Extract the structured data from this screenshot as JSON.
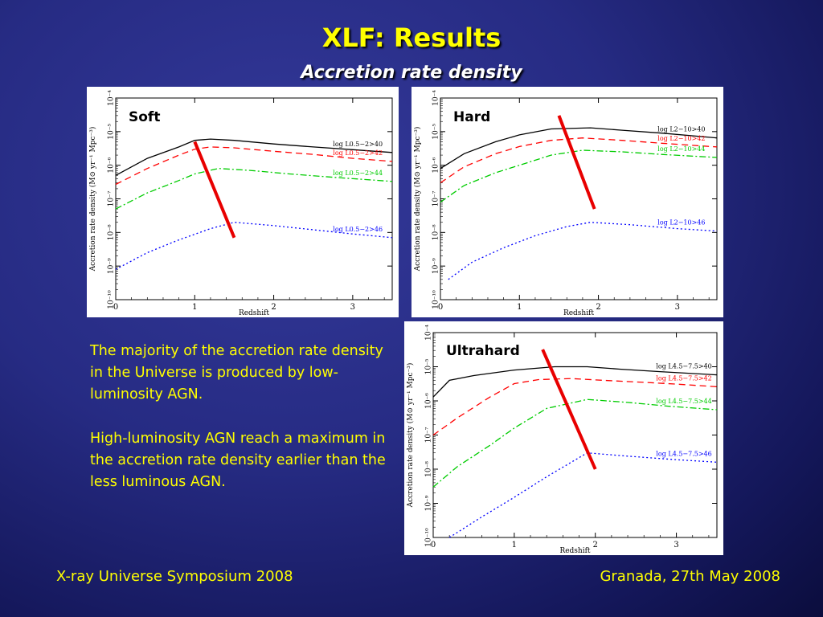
{
  "slide": {
    "title": "XLF: Results",
    "subtitle": "Accretion rate density",
    "paragraph1": "The majority of the accretion rate density in the Universe is produced by low-luminosity AGN.",
    "paragraph2": "High-luminosity AGN reach a maximum in the accretion rate density earlier than the less luminous AGN.",
    "footer_left": "X-ray Universe Symposium 2008",
    "footer_right": "Granada, 27th May 2008",
    "text_color": "#ffff00",
    "title_color": "#ffff00"
  },
  "chart_data": [
    {
      "type": "line",
      "panel_label": "Soft",
      "xlabel": "Redshift",
      "ylabel": "Accretion rate density (M⊙ yr⁻¹ Mpc⁻³)",
      "xlim": [
        0,
        3.5
      ],
      "ylim": [
        1e-10,
        0.0001
      ],
      "yscale": "log",
      "xticks": [
        "0",
        "1",
        "2",
        "3"
      ],
      "yticks": [
        "10⁻¹⁰",
        "10⁻⁹",
        "10⁻⁸",
        "10⁻⁷",
        "10⁻⁶",
        "10⁻⁵",
        "10⁻⁴"
      ],
      "series": [
        {
          "name": "log L0.5−2>40",
          "color": "#000000",
          "dash": "",
          "x": [
            0,
            0.4,
            0.8,
            1.0,
            1.2,
            1.5,
            2.0,
            2.5,
            3.0,
            3.5
          ],
          "y": [
            5e-07,
            1.6e-06,
            3.5e-06,
            5.5e-06,
            6e-06,
            5.5e-06,
            4.3e-06,
            3.5e-06,
            2.9e-06,
            2.4e-06
          ]
        },
        {
          "name": "log L0.5−2>42",
          "color": "#ff0000",
          "dash": "8,5",
          "x": [
            0,
            0.4,
            0.8,
            1.0,
            1.2,
            1.5,
            2.0,
            2.5,
            3.0,
            3.5
          ],
          "y": [
            2.7e-07,
            8e-07,
            2e-06,
            3e-06,
            3.5e-06,
            3.3e-06,
            2.6e-06,
            2.1e-06,
            1.6e-06,
            1.3e-06
          ]
        },
        {
          "name": "log L0.5−2>44",
          "color": "#00cc00",
          "dash": "8,3,2,3",
          "x": [
            0,
            0.4,
            0.8,
            1.0,
            1.3,
            1.7,
            2.2,
            2.8,
            3.5
          ],
          "y": [
            5e-08,
            1.5e-07,
            3.5e-07,
            5.5e-07,
            8e-07,
            7e-07,
            5.5e-07,
            4.3e-07,
            3.3e-07
          ]
        },
        {
          "name": "log L0.5−2>46",
          "color": "#0000ff",
          "dash": "2,3",
          "x": [
            0,
            0.4,
            0.8,
            1.2,
            1.5,
            2.0,
            2.5,
            3.0,
            3.5
          ],
          "y": [
            8e-10,
            2.5e-09,
            6e-09,
            1.3e-08,
            2e-08,
            1.6e-08,
            1.2e-08,
            9e-09,
            7e-09
          ]
        }
      ],
      "annotation_line": {
        "color": "#e80000",
        "from": {
          "x": 1.0,
          "y": 5e-06
        },
        "to": {
          "x": 1.5,
          "y": 7e-09
        }
      }
    },
    {
      "type": "line",
      "panel_label": "Hard",
      "xlabel": "Redshift",
      "ylabel": "Accretion rate density (M⊙ yr⁻¹ Mpc⁻³)",
      "xlim": [
        0,
        3.5
      ],
      "ylim": [
        1e-10,
        0.0001
      ],
      "yscale": "log",
      "xticks": [
        "0",
        "1",
        "2",
        "3"
      ],
      "yticks": [
        "10⁻¹⁰",
        "10⁻⁹",
        "10⁻⁸",
        "10⁻⁷",
        "10⁻⁶",
        "10⁻⁵",
        "10⁻⁴"
      ],
      "series": [
        {
          "name": "log L2−10>40",
          "color": "#000000",
          "dash": "",
          "x": [
            0,
            0.3,
            0.7,
            1.0,
            1.4,
            1.9,
            2.3,
            2.8,
            3.5
          ],
          "y": [
            8e-07,
            2.2e-06,
            5e-06,
            8e-06,
            1.2e-05,
            1.3e-05,
            1.1e-05,
            9e-06,
            6.5e-06
          ]
        },
        {
          "name": "log L2−10>42",
          "color": "#ff0000",
          "dash": "8,5",
          "x": [
            0,
            0.3,
            0.7,
            1.0,
            1.4,
            1.8,
            2.3,
            2.8,
            3.5
          ],
          "y": [
            3e-07,
            9e-07,
            2.2e-06,
            3.6e-06,
            5.5e-06,
            6.5e-06,
            5.5e-06,
            4.5e-06,
            3.5e-06
          ]
        },
        {
          "name": "log L2−10>44",
          "color": "#00cc00",
          "dash": "8,3,2,3",
          "x": [
            0,
            0.3,
            0.7,
            1.0,
            1.4,
            1.8,
            2.3,
            2.8,
            3.5
          ],
          "y": [
            8e-08,
            2.5e-07,
            6e-07,
            1e-06,
            2e-06,
            2.8e-06,
            2.5e-06,
            2.1e-06,
            1.7e-06
          ]
        },
        {
          "name": "log L2−10>46",
          "color": "#0000ff",
          "dash": "2,3",
          "x": [
            0.1,
            0.4,
            0.8,
            1.2,
            1.6,
            1.9,
            2.4,
            3.0,
            3.5
          ],
          "y": [
            4e-10,
            1.3e-09,
            3.5e-09,
            8e-09,
            1.5e-08,
            2e-08,
            1.7e-08,
            1.3e-08,
            1.1e-08
          ]
        }
      ],
      "annotation_line": {
        "color": "#e80000",
        "from": {
          "x": 1.5,
          "y": 3e-05
        },
        "to": {
          "x": 1.95,
          "y": 5e-08
        }
      }
    },
    {
      "type": "line",
      "panel_label": "Ultrahard",
      "xlabel": "Redshift",
      "ylabel": "Accretion rate density (M⊙ yr⁻¹ Mpc⁻³)",
      "xlim": [
        0,
        3.5
      ],
      "ylim": [
        1e-10,
        0.0001
      ],
      "yscale": "log",
      "xticks": [
        "0",
        "1",
        "2",
        "3"
      ],
      "yticks": [
        "10⁻¹⁰",
        "10⁻⁹",
        "10⁻⁸",
        "10⁻⁷",
        "10⁻⁶",
        "10⁻⁵",
        "10⁻⁴"
      ],
      "series": [
        {
          "name": "log L4.5−7.5>40",
          "color": "#000000",
          "dash": "",
          "x": [
            0,
            0.2,
            0.5,
            1.0,
            1.5,
            1.9,
            2.3,
            2.8,
            3.5
          ],
          "y": [
            1.3e-06,
            4e-06,
            5.5e-06,
            8e-06,
            1e-05,
            1e-05,
            8.5e-06,
            7.2e-06,
            5.8e-06
          ]
        },
        {
          "name": "log L4.5−7.5>42",
          "color": "#ff0000",
          "dash": "8,5",
          "x": [
            0,
            0.3,
            0.7,
            1.0,
            1.3,
            1.7,
            2.1,
            2.6,
            3.0,
            3.5
          ],
          "y": [
            1e-07,
            3.2e-07,
            1.3e-06,
            3.2e-06,
            4.2e-06,
            4.5e-06,
            4e-06,
            3.5e-06,
            3.1e-06,
            2.6e-06
          ]
        },
        {
          "name": "log L4.5−7.5>44",
          "color": "#00cc00",
          "dash": "8,3,2,3",
          "x": [
            0,
            0.3,
            0.7,
            1.0,
            1.4,
            1.9,
            2.4,
            2.9,
            3.5
          ],
          "y": [
            3e-09,
            1.2e-08,
            5e-08,
            1.6e-07,
            6e-07,
            1.1e-06,
            9e-07,
            7e-07,
            5.5e-07
          ]
        },
        {
          "name": "log L4.5−7.5>46",
          "color": "#0000ff",
          "dash": "2,3",
          "x": [
            0.2,
            0.6,
            1.0,
            1.4,
            1.9,
            2.4,
            3.0,
            3.5
          ],
          "y": [
            1e-10,
            4e-10,
            1.5e-09,
            6e-09,
            3e-08,
            2.4e-08,
            1.9e-08,
            1.6e-08
          ]
        }
      ],
      "annotation_line": {
        "color": "#e80000",
        "from": {
          "x": 1.35,
          "y": 3.2e-05
        },
        "to": {
          "x": 2.0,
          "y": 1e-08
        }
      }
    }
  ]
}
